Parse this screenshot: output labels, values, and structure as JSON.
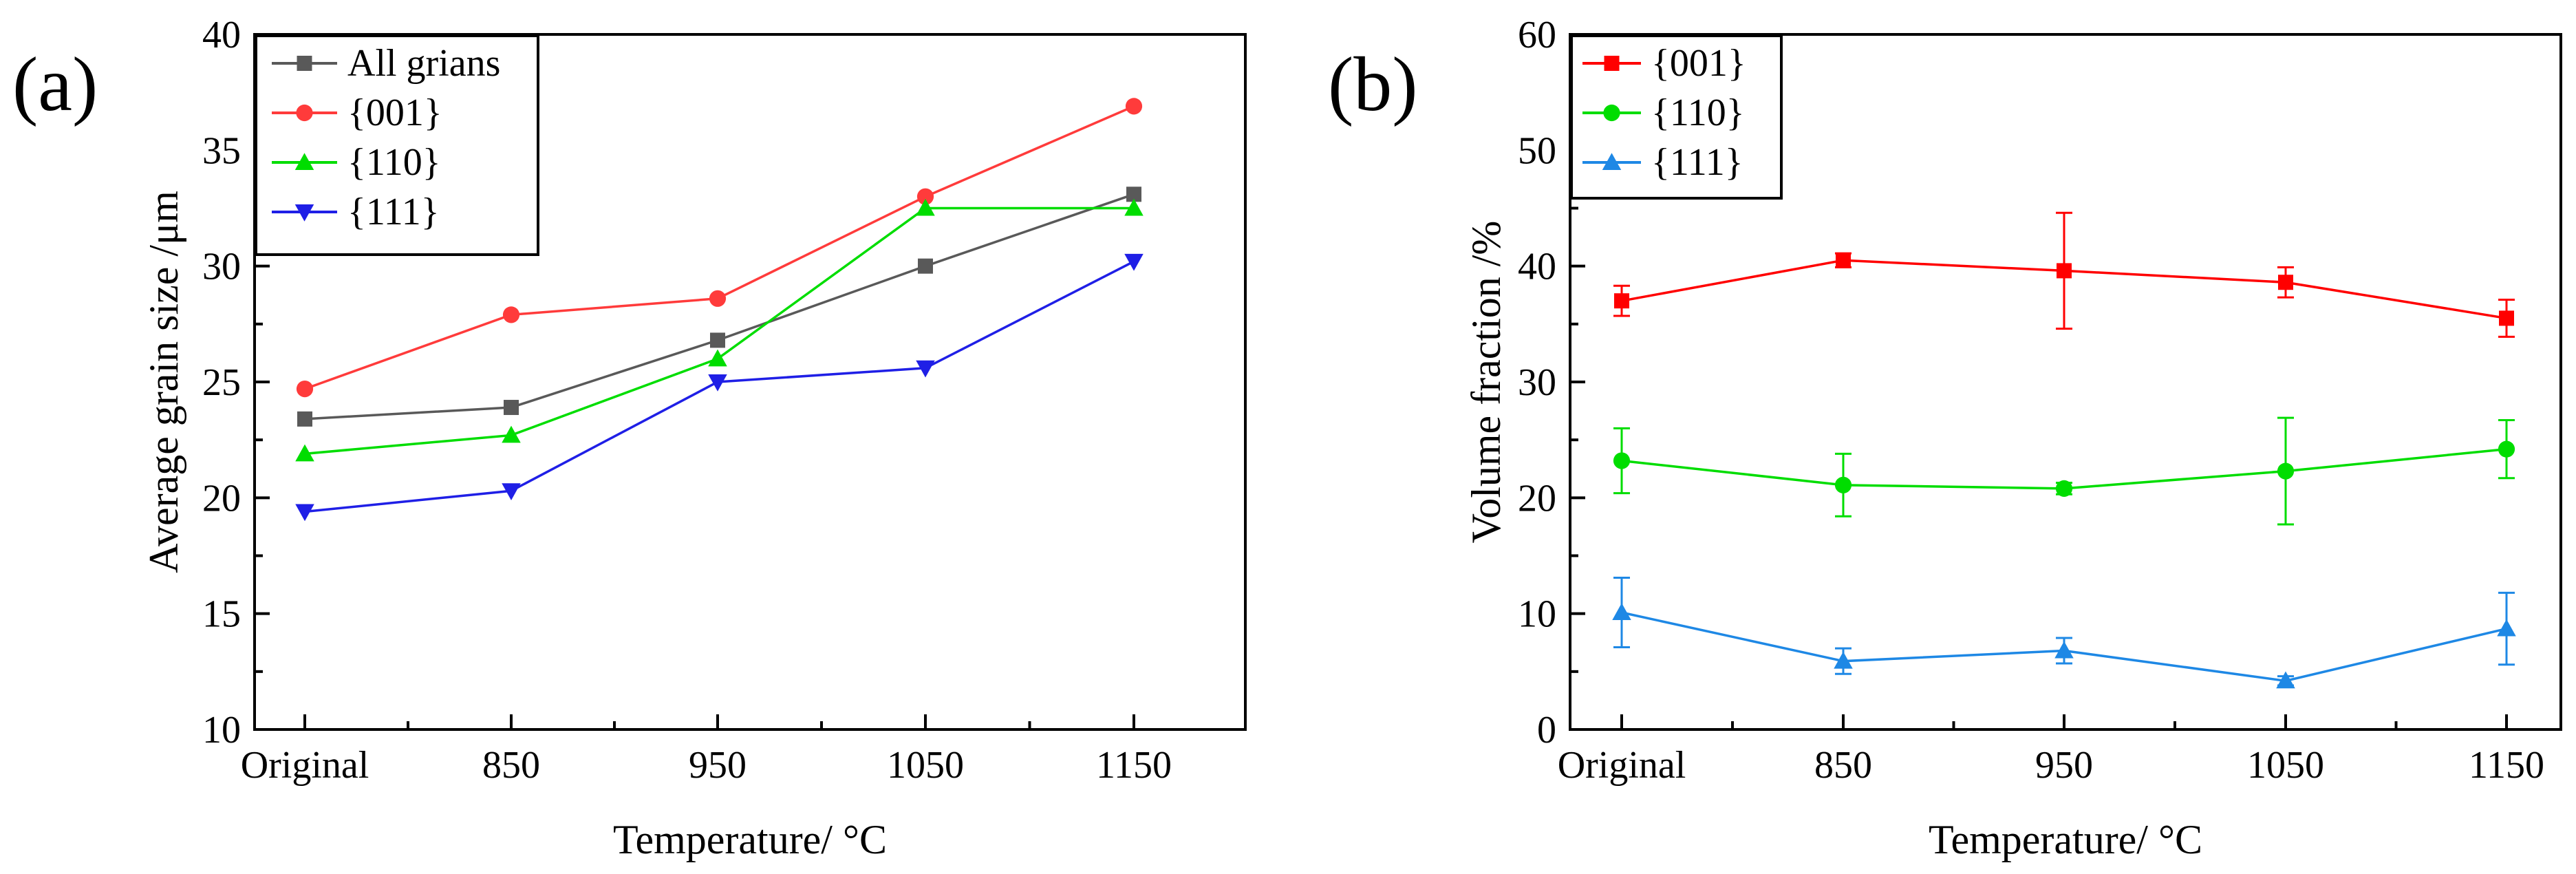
{
  "figure": {
    "panels": [
      "(a)",
      "(b)"
    ]
  },
  "chart_data": [
    {
      "type": "line",
      "panel_label": "(a)",
      "title": "",
      "xlabel": "Temperature/ °C",
      "ylabel": "Average grain size /μm",
      "categories": [
        "Original",
        "850",
        "950",
        "1050",
        "1150"
      ],
      "ylim": [
        10,
        40
      ],
      "yticks": [
        10,
        15,
        20,
        25,
        30,
        35,
        40
      ],
      "grid": false,
      "legend_position": "top-left",
      "series": [
        {
          "name": "All grians",
          "color": "#595959",
          "marker": "square",
          "values": [
            23.4,
            23.9,
            26.8,
            30.0,
            33.1
          ]
        },
        {
          "name": "{001}",
          "color": "#ff3b3b",
          "marker": "circle",
          "values": [
            24.7,
            27.9,
            28.6,
            33.0,
            36.9
          ]
        },
        {
          "name": "{110}",
          "color": "#00dd00",
          "marker": "triangle-up",
          "values": [
            21.9,
            22.7,
            26.0,
            32.5,
            32.5
          ]
        },
        {
          "name": "{111}",
          "color": "#1f1fe6",
          "marker": "triangle-down",
          "values": [
            19.4,
            20.3,
            25.0,
            25.6,
            30.2
          ]
        }
      ]
    },
    {
      "type": "line",
      "panel_label": "(b)",
      "title": "",
      "xlabel": "Temperature/ °C",
      "ylabel": "Volume fraction /%",
      "categories": [
        "Original",
        "850",
        "950",
        "1050",
        "1150"
      ],
      "ylim": [
        0,
        60
      ],
      "yticks": [
        0,
        10,
        20,
        30,
        40,
        50,
        60
      ],
      "grid": false,
      "legend_position": "top-left",
      "series": [
        {
          "name": "{001}",
          "color": "#ff0000",
          "marker": "square",
          "values": [
            37.0,
            40.5,
            39.6,
            38.6,
            35.5
          ],
          "errors": [
            1.3,
            0.6,
            5.0,
            1.3,
            1.6
          ]
        },
        {
          "name": "{110}",
          "color": "#00dd00",
          "marker": "circle",
          "values": [
            23.2,
            21.1,
            20.8,
            22.3,
            24.2
          ],
          "errors": [
            2.8,
            2.7,
            0.5,
            4.6,
            2.5
          ]
        },
        {
          "name": "{111}",
          "color": "#1e88e5",
          "marker": "triangle-up",
          "values": [
            10.1,
            5.9,
            6.8,
            4.2,
            8.7
          ],
          "errors": [
            3.0,
            1.1,
            1.1,
            0.4,
            3.1
          ]
        }
      ]
    }
  ]
}
